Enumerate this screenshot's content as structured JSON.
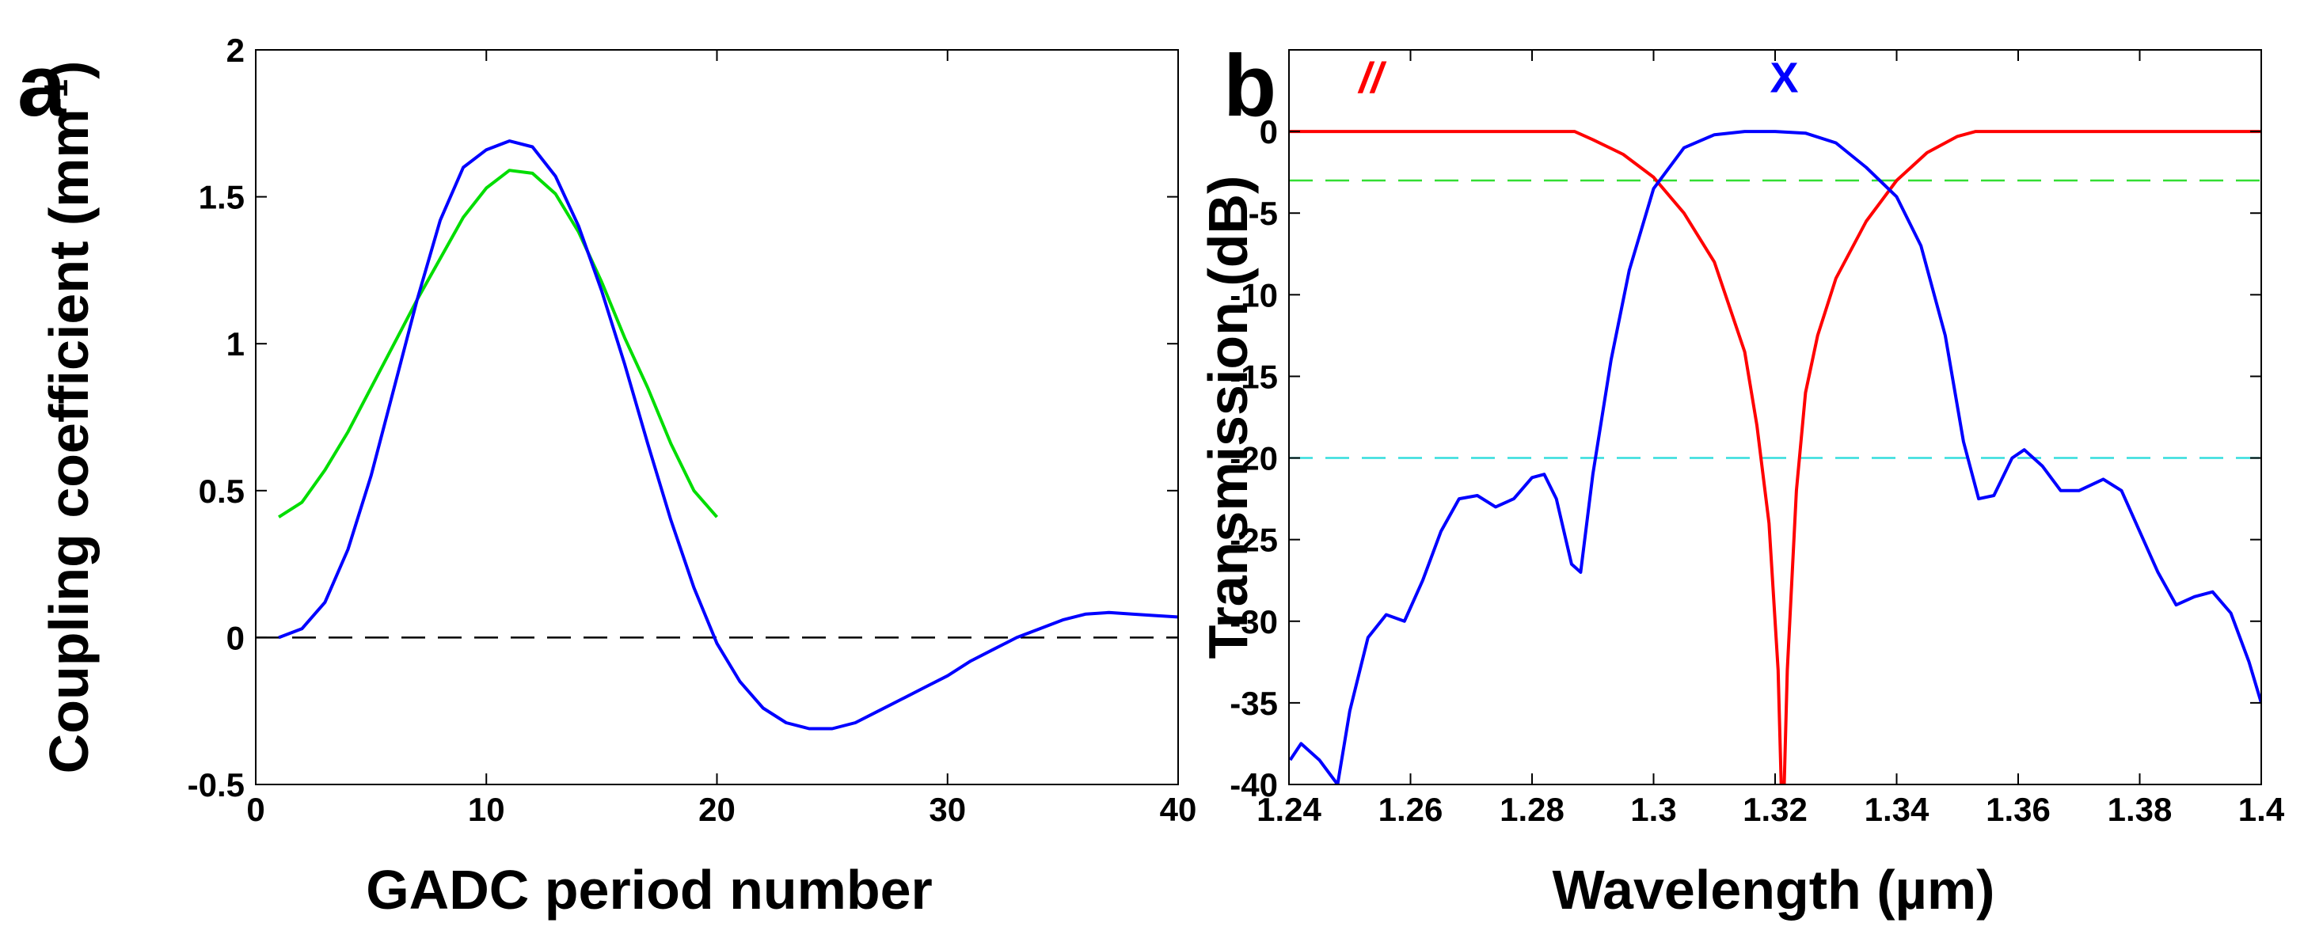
{
  "chart_data": [
    {
      "panel": "a",
      "type": "line",
      "xlabel": "GADC period number",
      "ylabel": "Coupling coefficient (mm",
      "ylabel_sup": "-1",
      "ylabel_end": ")",
      "xlim": [
        0,
        40
      ],
      "ylim": [
        -0.5,
        2
      ],
      "xticks": [
        0,
        10,
        20,
        30,
        40
      ],
      "yticks": [
        -0.5,
        0,
        0.5,
        1,
        1.5,
        2
      ],
      "xtick_labels": [
        "0",
        "10",
        "20",
        "30",
        "40"
      ],
      "ytick_labels": [
        "-0.5",
        "0",
        "0.5",
        "1",
        "1.5",
        "2"
      ],
      "reference_lines": [
        {
          "name": "zero-line",
          "y": 0,
          "color": "#000000",
          "style": "dashed"
        }
      ],
      "series": [
        {
          "name": "green-curve",
          "color": "#00dd00",
          "x": [
            1,
            2,
            3,
            4,
            5,
            6,
            7,
            8,
            9,
            10,
            11,
            12,
            13,
            14,
            15,
            16,
            17,
            18,
            19,
            20
          ],
          "y": [
            0.41,
            0.46,
            0.57,
            0.7,
            0.85,
            1.0,
            1.15,
            1.29,
            1.43,
            1.53,
            1.59,
            1.58,
            1.51,
            1.38,
            1.21,
            1.02,
            0.85,
            0.66,
            0.5,
            0.41
          ]
        },
        {
          "name": "blue-curve",
          "color": "#0000ff",
          "x": [
            1,
            2,
            3,
            4,
            5,
            6,
            7,
            8,
            9,
            10,
            11,
            12,
            13,
            14,
            15,
            16,
            17,
            18,
            19,
            20,
            21,
            22,
            23,
            24,
            25,
            26,
            27,
            28,
            29,
            30,
            31,
            32,
            33,
            34,
            35,
            36,
            37,
            38,
            39,
            40
          ],
          "y": [
            0.0,
            0.03,
            0.12,
            0.3,
            0.55,
            0.85,
            1.15,
            1.42,
            1.6,
            1.66,
            1.69,
            1.67,
            1.57,
            1.4,
            1.18,
            0.93,
            0.66,
            0.4,
            0.17,
            -0.02,
            -0.15,
            -0.24,
            -0.29,
            -0.31,
            -0.31,
            -0.29,
            -0.25,
            -0.21,
            -0.17,
            -0.13,
            -0.08,
            -0.04,
            0.0,
            0.03,
            0.06,
            0.08,
            0.085,
            0.08,
            0.075,
            0.07
          ]
        }
      ]
    },
    {
      "panel": "b",
      "type": "line",
      "xlabel": "Wavelength (µm)",
      "ylabel": "Transmission (dB)",
      "xlim": [
        1.24,
        1.4
      ],
      "ylim": [
        -40,
        5
      ],
      "xticks": [
        1.24,
        1.26,
        1.28,
        1.3,
        1.32,
        1.34,
        1.36,
        1.38,
        1.4
      ],
      "yticks": [
        -40,
        -35,
        -30,
        -25,
        -20,
        -15,
        -10,
        -5,
        0
      ],
      "xtick_labels": [
        "1.24",
        "1.26",
        "1.28",
        "1.3",
        "1.32",
        "1.34",
        "1.36",
        "1.38",
        "1.4"
      ],
      "ytick_labels": [
        "-40",
        "-35",
        "-30",
        "-25",
        "-20",
        "-15",
        "-10",
        "-5",
        "0"
      ],
      "reference_lines": [
        {
          "name": "minus-3dB-line",
          "y": -3,
          "color": "#33dd33",
          "style": "dashed"
        },
        {
          "name": "minus-20dB-line",
          "y": -20,
          "color": "#33dddd",
          "style": "dashed"
        }
      ],
      "annotations": [
        {
          "name": "bar-label",
          "text": "//",
          "x": 1.2535,
          "y": 2.4,
          "color": "#ff0000"
        },
        {
          "name": "cross-label",
          "text": "X",
          "x": 1.3215,
          "y": 2.4,
          "color": "#0000ff"
        }
      ],
      "series": [
        {
          "name": "bar-port",
          "color": "#ff0000",
          "x": [
            1.24,
            1.25,
            1.26,
            1.27,
            1.28,
            1.287,
            1.29,
            1.295,
            1.3,
            1.305,
            1.31,
            1.315,
            1.317,
            1.319,
            1.3205,
            1.321,
            1.3215,
            1.322,
            1.3235,
            1.325,
            1.327,
            1.33,
            1.335,
            1.34,
            1.345,
            1.35,
            1.353,
            1.36,
            1.37,
            1.38,
            1.39,
            1.4
          ],
          "y": [
            0,
            0,
            0,
            0,
            0,
            0,
            -0.5,
            -1.4,
            -2.8,
            -5,
            -8,
            -13.5,
            -18,
            -24,
            -33,
            -40,
            -40,
            -33,
            -22,
            -16,
            -12.5,
            -9,
            -5.5,
            -3,
            -1.3,
            -0.3,
            0,
            0,
            0,
            0,
            0,
            0
          ]
        },
        {
          "name": "cross-port",
          "color": "#0000ff",
          "x": [
            1.2402,
            1.242,
            1.245,
            1.248,
            1.25,
            1.253,
            1.256,
            1.259,
            1.262,
            1.265,
            1.268,
            1.271,
            1.274,
            1.277,
            1.28,
            1.282,
            1.284,
            1.2865,
            1.288,
            1.29,
            1.293,
            1.296,
            1.3,
            1.305,
            1.31,
            1.315,
            1.32,
            1.325,
            1.33,
            1.335,
            1.34,
            1.344,
            1.348,
            1.351,
            1.3535,
            1.356,
            1.359,
            1.361,
            1.364,
            1.367,
            1.37,
            1.374,
            1.377,
            1.38,
            1.383,
            1.386,
            1.389,
            1.392,
            1.395,
            1.398,
            1.4
          ],
          "y": [
            -38.5,
            -37.5,
            -38.5,
            -40,
            -35.5,
            -31,
            -29.6,
            -30,
            -27.5,
            -24.5,
            -22.5,
            -22.3,
            -23,
            -22.5,
            -21.2,
            -21,
            -22.5,
            -26.5,
            -27,
            -21,
            -14,
            -8.5,
            -3.5,
            -1,
            -0.2,
            0,
            0,
            -0.1,
            -0.7,
            -2.2,
            -4,
            -7,
            -12.5,
            -19,
            -22.5,
            -22.3,
            -20,
            -19.5,
            -20.5,
            -22,
            -22,
            -21.3,
            -22,
            -24.5,
            -27,
            -29,
            -28.5,
            -28.2,
            -29.5,
            -32.5,
            -35
          ]
        }
      ]
    }
  ],
  "panels": [
    {
      "label": "a"
    },
    {
      "label": "b"
    }
  ]
}
